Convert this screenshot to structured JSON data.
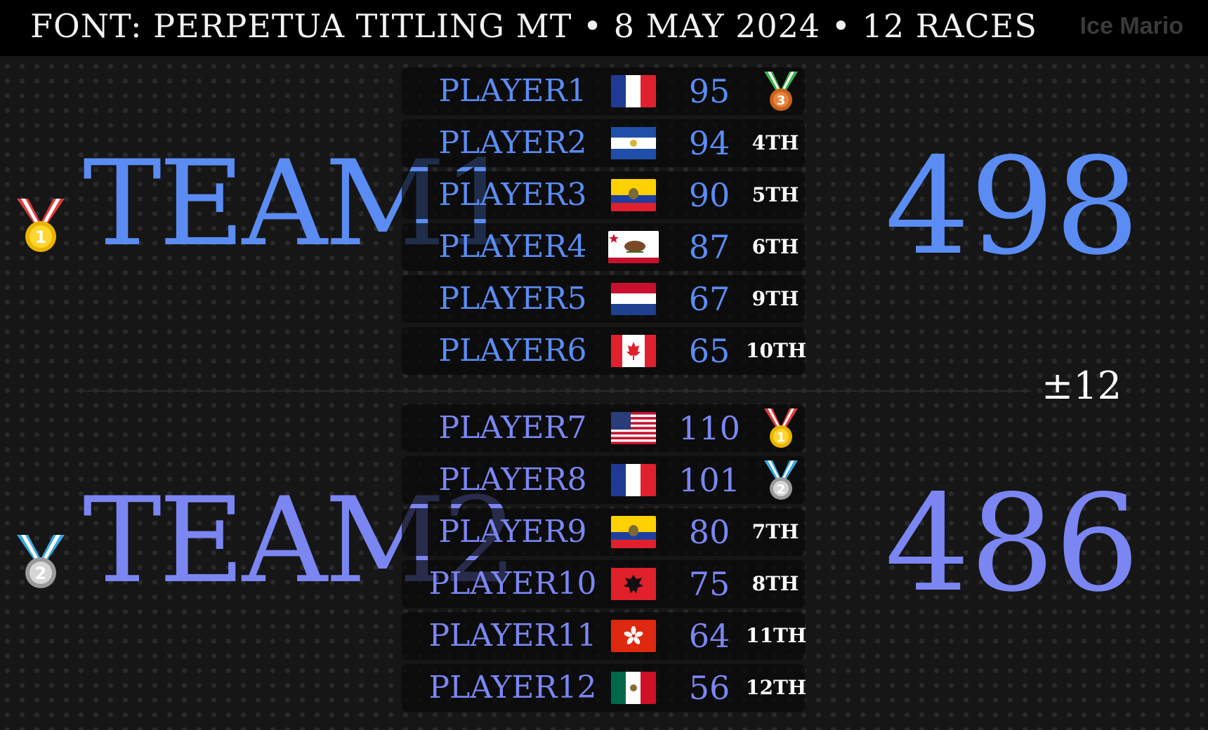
{
  "header": {
    "title": "FONT: PERPETUA TITLING MT  •  8 MAY 2024  •  12 RACES",
    "watermark": "Ice Mario"
  },
  "colors": {
    "team1": "#5b8cf3",
    "team2": "#7b86f2",
    "background": "#161616",
    "header_bg": "#000000"
  },
  "teams": [
    {
      "name": "TEAM1",
      "score": "498",
      "medal_icon": "gold-medal-icon",
      "players": [
        {
          "name": "PLAYER1",
          "flag": "france-flag-icon",
          "score": "95",
          "place": "",
          "place_icon": "bronze-medal-icon"
        },
        {
          "name": "PLAYER2",
          "flag": "el-salvador-flag-icon",
          "score": "94",
          "place": "4TH",
          "place_icon": ""
        },
        {
          "name": "PLAYER3",
          "flag": "ecuador-flag-icon",
          "score": "90",
          "place": "5TH",
          "place_icon": ""
        },
        {
          "name": "PLAYER4",
          "flag": "california-flag-icon",
          "score": "87",
          "place": "6TH",
          "place_icon": ""
        },
        {
          "name": "PLAYER5",
          "flag": "netherlands-flag-icon",
          "score": "67",
          "place": "9TH",
          "place_icon": ""
        },
        {
          "name": "PLAYER6",
          "flag": "canada-flag-icon",
          "score": "65",
          "place": "10TH",
          "place_icon": ""
        }
      ]
    },
    {
      "name": "TEAM2",
      "score": "486",
      "medal_icon": "silver-medal-icon",
      "players": [
        {
          "name": "PLAYER7",
          "flag": "usa-flag-icon",
          "score": "110",
          "place": "",
          "place_icon": "gold-medal-icon"
        },
        {
          "name": "PLAYER8",
          "flag": "france-flag-icon",
          "score": "101",
          "place": "",
          "place_icon": "silver-medal-icon"
        },
        {
          "name": "PLAYER9",
          "flag": "ecuador-flag-icon",
          "score": "80",
          "place": "7TH",
          "place_icon": ""
        },
        {
          "name": "PLAYER10",
          "flag": "albania-flag-icon",
          "score": "75",
          "place": "8TH",
          "place_icon": ""
        },
        {
          "name": "PLAYER11",
          "flag": "hong-kong-flag-icon",
          "score": "64",
          "place": "11TH",
          "place_icon": ""
        },
        {
          "name": "PLAYER12",
          "flag": "mexico-flag-icon",
          "score": "56",
          "place": "12TH",
          "place_icon": ""
        }
      ]
    }
  ],
  "difference": "±12",
  "medal_numbers": {
    "gold": "1",
    "silver": "2",
    "bronze": "3"
  }
}
